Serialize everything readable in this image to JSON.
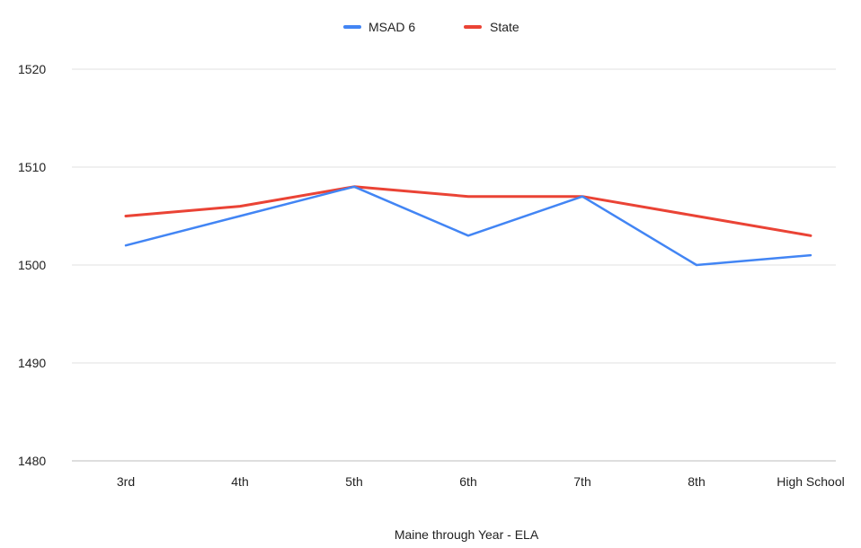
{
  "chart_data": {
    "type": "line",
    "categories": [
      "3rd",
      "4th",
      "5th",
      "6th",
      "7th",
      "8th",
      "High School"
    ],
    "series": [
      {
        "name": "MSAD 6",
        "color": "#4285f4",
        "values": [
          1502,
          1505,
          1508,
          1503,
          1507,
          1500,
          1501
        ]
      },
      {
        "name": "State",
        "color": "#ea4335",
        "values": [
          1505,
          1506,
          1508,
          1507,
          1507,
          1505,
          1503
        ]
      }
    ],
    "xlabel": "Maine through Year - ELA",
    "ylabel": "",
    "ylim": [
      1480,
      1520
    ],
    "yticks": [
      "1480",
      "1490",
      "1500",
      "1510",
      "1520"
    ],
    "grid": true,
    "legend_position": "top-center"
  }
}
